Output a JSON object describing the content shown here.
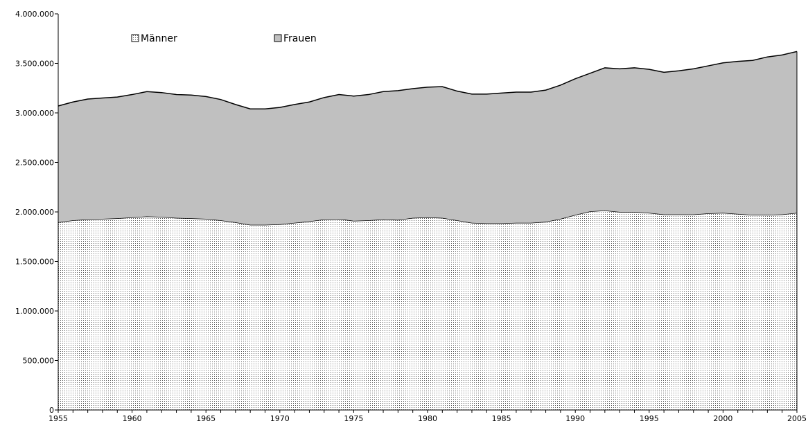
{
  "chart_data": {
    "type": "area",
    "stacked": true,
    "title": "",
    "xlabel": "",
    "ylabel": "",
    "xlim": [
      1955,
      2005
    ],
    "ylim": [
      0,
      4000000
    ],
    "y_ticks": [
      0,
      500000,
      1000000,
      1500000,
      2000000,
      2500000,
      3000000,
      3500000,
      4000000
    ],
    "y_tick_labels": [
      "0",
      "500.000",
      "1.000.000",
      "1.500.000",
      "2.000.000",
      "2.500.000",
      "3.000.000",
      "3.500.000",
      "4.000.000"
    ],
    "x_ticks": [
      1955,
      1960,
      1965,
      1970,
      1975,
      1980,
      1985,
      1990,
      1995,
      2000,
      2005
    ],
    "x_tick_labels": [
      "1955",
      "1960",
      "1965",
      "1970",
      "1975",
      "1980",
      "1985",
      "1990",
      "1995",
      "2000",
      "2005"
    ],
    "grid": false,
    "legend_position": "top-left",
    "x": [
      1955,
      1956,
      1957,
      1958,
      1959,
      1960,
      1961,
      1962,
      1963,
      1964,
      1965,
      1966,
      1967,
      1968,
      1969,
      1970,
      1971,
      1972,
      1973,
      1974,
      1975,
      1976,
      1977,
      1978,
      1979,
      1980,
      1981,
      1982,
      1983,
      1984,
      1985,
      1986,
      1987,
      1988,
      1989,
      1990,
      1991,
      1992,
      1993,
      1994,
      1995,
      1996,
      1997,
      1998,
      1999,
      2000,
      2001,
      2002,
      2003,
      2004,
      2005
    ],
    "series": [
      {
        "name": "Männer",
        "fill": "dotted-white",
        "values": [
          1895000,
          1915000,
          1925000,
          1930000,
          1935000,
          1945000,
          1955000,
          1950000,
          1940000,
          1935000,
          1930000,
          1915000,
          1895000,
          1870000,
          1870000,
          1875000,
          1890000,
          1905000,
          1925000,
          1930000,
          1910000,
          1915000,
          1925000,
          1920000,
          1940000,
          1945000,
          1940000,
          1915000,
          1890000,
          1885000,
          1885000,
          1890000,
          1890000,
          1900000,
          1930000,
          1970000,
          2005000,
          2015000,
          2000000,
          2000000,
          1990000,
          1975000,
          1975000,
          1975000,
          1985000,
          1990000,
          1980000,
          1970000,
          1970000,
          1975000,
          1990000
        ]
      },
      {
        "name": "Frauen",
        "fill": "#c0c0c0",
        "values": [
          1175000,
          1195000,
          1215000,
          1220000,
          1225000,
          1240000,
          1260000,
          1255000,
          1245000,
          1245000,
          1235000,
          1220000,
          1190000,
          1170000,
          1170000,
          1180000,
          1195000,
          1205000,
          1230000,
          1255000,
          1260000,
          1270000,
          1290000,
          1305000,
          1305000,
          1315000,
          1325000,
          1305000,
          1300000,
          1305000,
          1315000,
          1320000,
          1320000,
          1330000,
          1350000,
          1375000,
          1395000,
          1440000,
          1445000,
          1455000,
          1450000,
          1435000,
          1450000,
          1470000,
          1490000,
          1515000,
          1540000,
          1560000,
          1595000,
          1610000,
          1630000
        ]
      }
    ]
  }
}
